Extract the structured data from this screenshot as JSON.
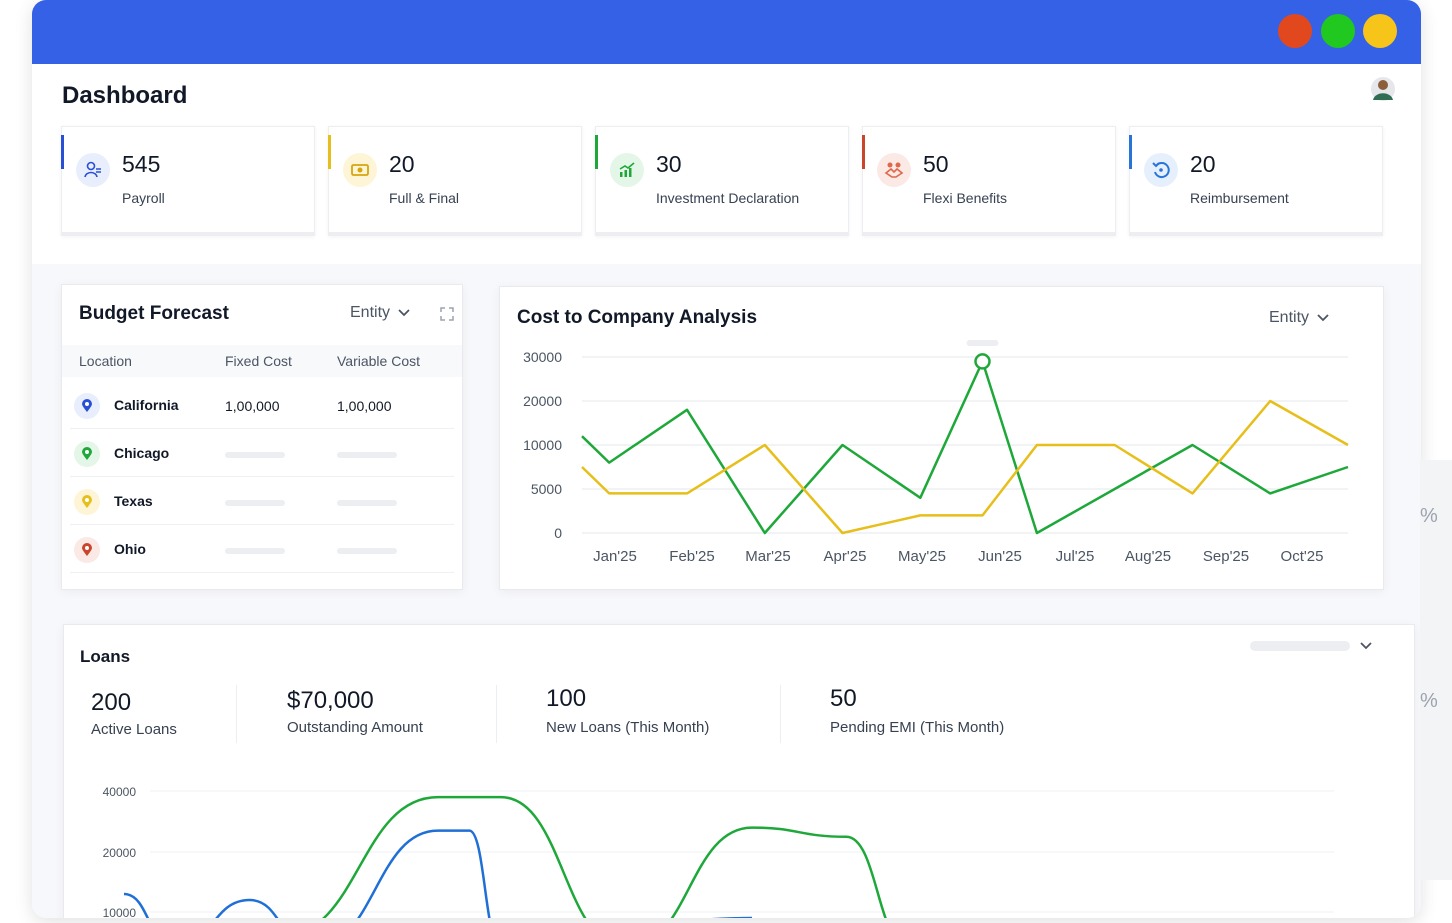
{
  "window": {
    "controls": [
      "close",
      "maximize",
      "minimize"
    ]
  },
  "header": {
    "title": "Dashboard",
    "avatar_icon": "user-avatar-icon"
  },
  "stats": [
    {
      "value": "545",
      "label": "Payroll",
      "color": "#2a4fd7",
      "icon": "payroll-icon"
    },
    {
      "value": "20",
      "label": "Full & Final",
      "color": "#e7bf1a",
      "icon": "money-icon"
    },
    {
      "value": "30",
      "label": "Investment Declaration",
      "color": "#1fa83a",
      "icon": "chart-growth-icon"
    },
    {
      "value": "50",
      "label": "Flexi Benefits",
      "color": "#c9452b",
      "icon": "handshake-icon"
    },
    {
      "value": "20",
      "label": "Reimbursement",
      "color": "#2a74d7",
      "icon": "refresh-icon"
    }
  ],
  "budget": {
    "title": "Budget Forecast",
    "filter": "Entity",
    "columns": [
      "Location",
      "Fixed Cost",
      "Variable Cost"
    ],
    "rows": [
      {
        "location": "California",
        "fixed": "1,00,000",
        "variable": "1,00,000",
        "color": "#2a4fd7"
      },
      {
        "location": "Chicago",
        "fixed": "",
        "variable": "",
        "color": "#1fa83a"
      },
      {
        "location": "Texas",
        "fixed": "",
        "variable": "",
        "color": "#e7bf1a"
      },
      {
        "location": "Ohio",
        "fixed": "",
        "variable": "",
        "color": "#c9452b"
      }
    ]
  },
  "ctc": {
    "title": "Cost to Company Analysis",
    "filter": "Entity"
  },
  "loans": {
    "title": "Loans",
    "stats": [
      {
        "value": "200",
        "label": "Active Loans"
      },
      {
        "value": "$70,000",
        "label": "Outstanding Amount"
      },
      {
        "value": "100",
        "label": "New Loans (This Month)"
      },
      {
        "value": "50",
        "label": "Pending EMI (This Month)"
      }
    ]
  },
  "side_glyphs": [
    "%",
    "%"
  ],
  "chart_data": [
    {
      "type": "line",
      "title": "Cost to Company Analysis",
      "categories": [
        "Jan'25",
        "Feb'25",
        "Mar'25",
        "Apr'25",
        "May'25",
        "Jun'25",
        "Jul'25",
        "Aug'25",
        "Sep'25",
        "Oct'25"
      ],
      "y_ticks": [
        "30000",
        "20000",
        "10000",
        "5000",
        "0"
      ],
      "series": [
        {
          "color": "#1fa83a",
          "values": [
            [
              0.0,
              12000
            ],
            [
              0.35,
              8000
            ],
            [
              1.35,
              18000
            ],
            [
              2.35,
              0
            ],
            [
              3.35,
              10000
            ],
            [
              4.35,
              4000
            ],
            [
              5.15,
              29000
            ],
            [
              5.85,
              0
            ],
            [
              6.85,
              5000
            ],
            [
              7.85,
              10000
            ],
            [
              8.85,
              4500
            ],
            [
              9.85,
              7500
            ]
          ]
        },
        {
          "color": "#e7bf1a",
          "values": [
            [
              0.0,
              7500
            ],
            [
              0.35,
              4500
            ],
            [
              1.35,
              4500
            ],
            [
              2.35,
              10000
            ],
            [
              3.35,
              0
            ],
            [
              4.35,
              2000
            ],
            [
              5.15,
              2000
            ],
            [
              5.85,
              10000
            ],
            [
              6.85,
              10000
            ],
            [
              7.85,
              4500
            ],
            [
              8.85,
              20000
            ],
            [
              9.85,
              10000
            ]
          ]
        }
      ],
      "highlight_point": {
        "x": 5.15,
        "y": 29000
      },
      "grid": true
    },
    {
      "type": "line",
      "title": "Loans",
      "y_ticks": [
        "40000",
        "20000",
        "10000"
      ],
      "series": [
        {
          "color": "#1fa83a",
          "values": [
            [
              0.1,
              4000
            ],
            [
              0.25,
              6000
            ],
            [
              0.5,
              38000
            ],
            [
              0.6,
              38000
            ],
            [
              0.8,
              4000
            ],
            [
              1.0,
              28000
            ],
            [
              1.15,
              25000
            ],
            [
              1.25,
              4000
            ],
            [
              1.5,
              4000
            ]
          ]
        },
        {
          "color": "#1f6fd6",
          "values": [
            [
              0.0,
              13000
            ],
            [
              0.08,
              4000
            ],
            [
              0.2,
              12000
            ],
            [
              0.3,
              4000
            ],
            [
              0.5,
              27000
            ],
            [
              0.55,
              27000
            ],
            [
              0.6,
              4000
            ],
            [
              1.0,
              9000
            ]
          ]
        }
      ]
    }
  ]
}
